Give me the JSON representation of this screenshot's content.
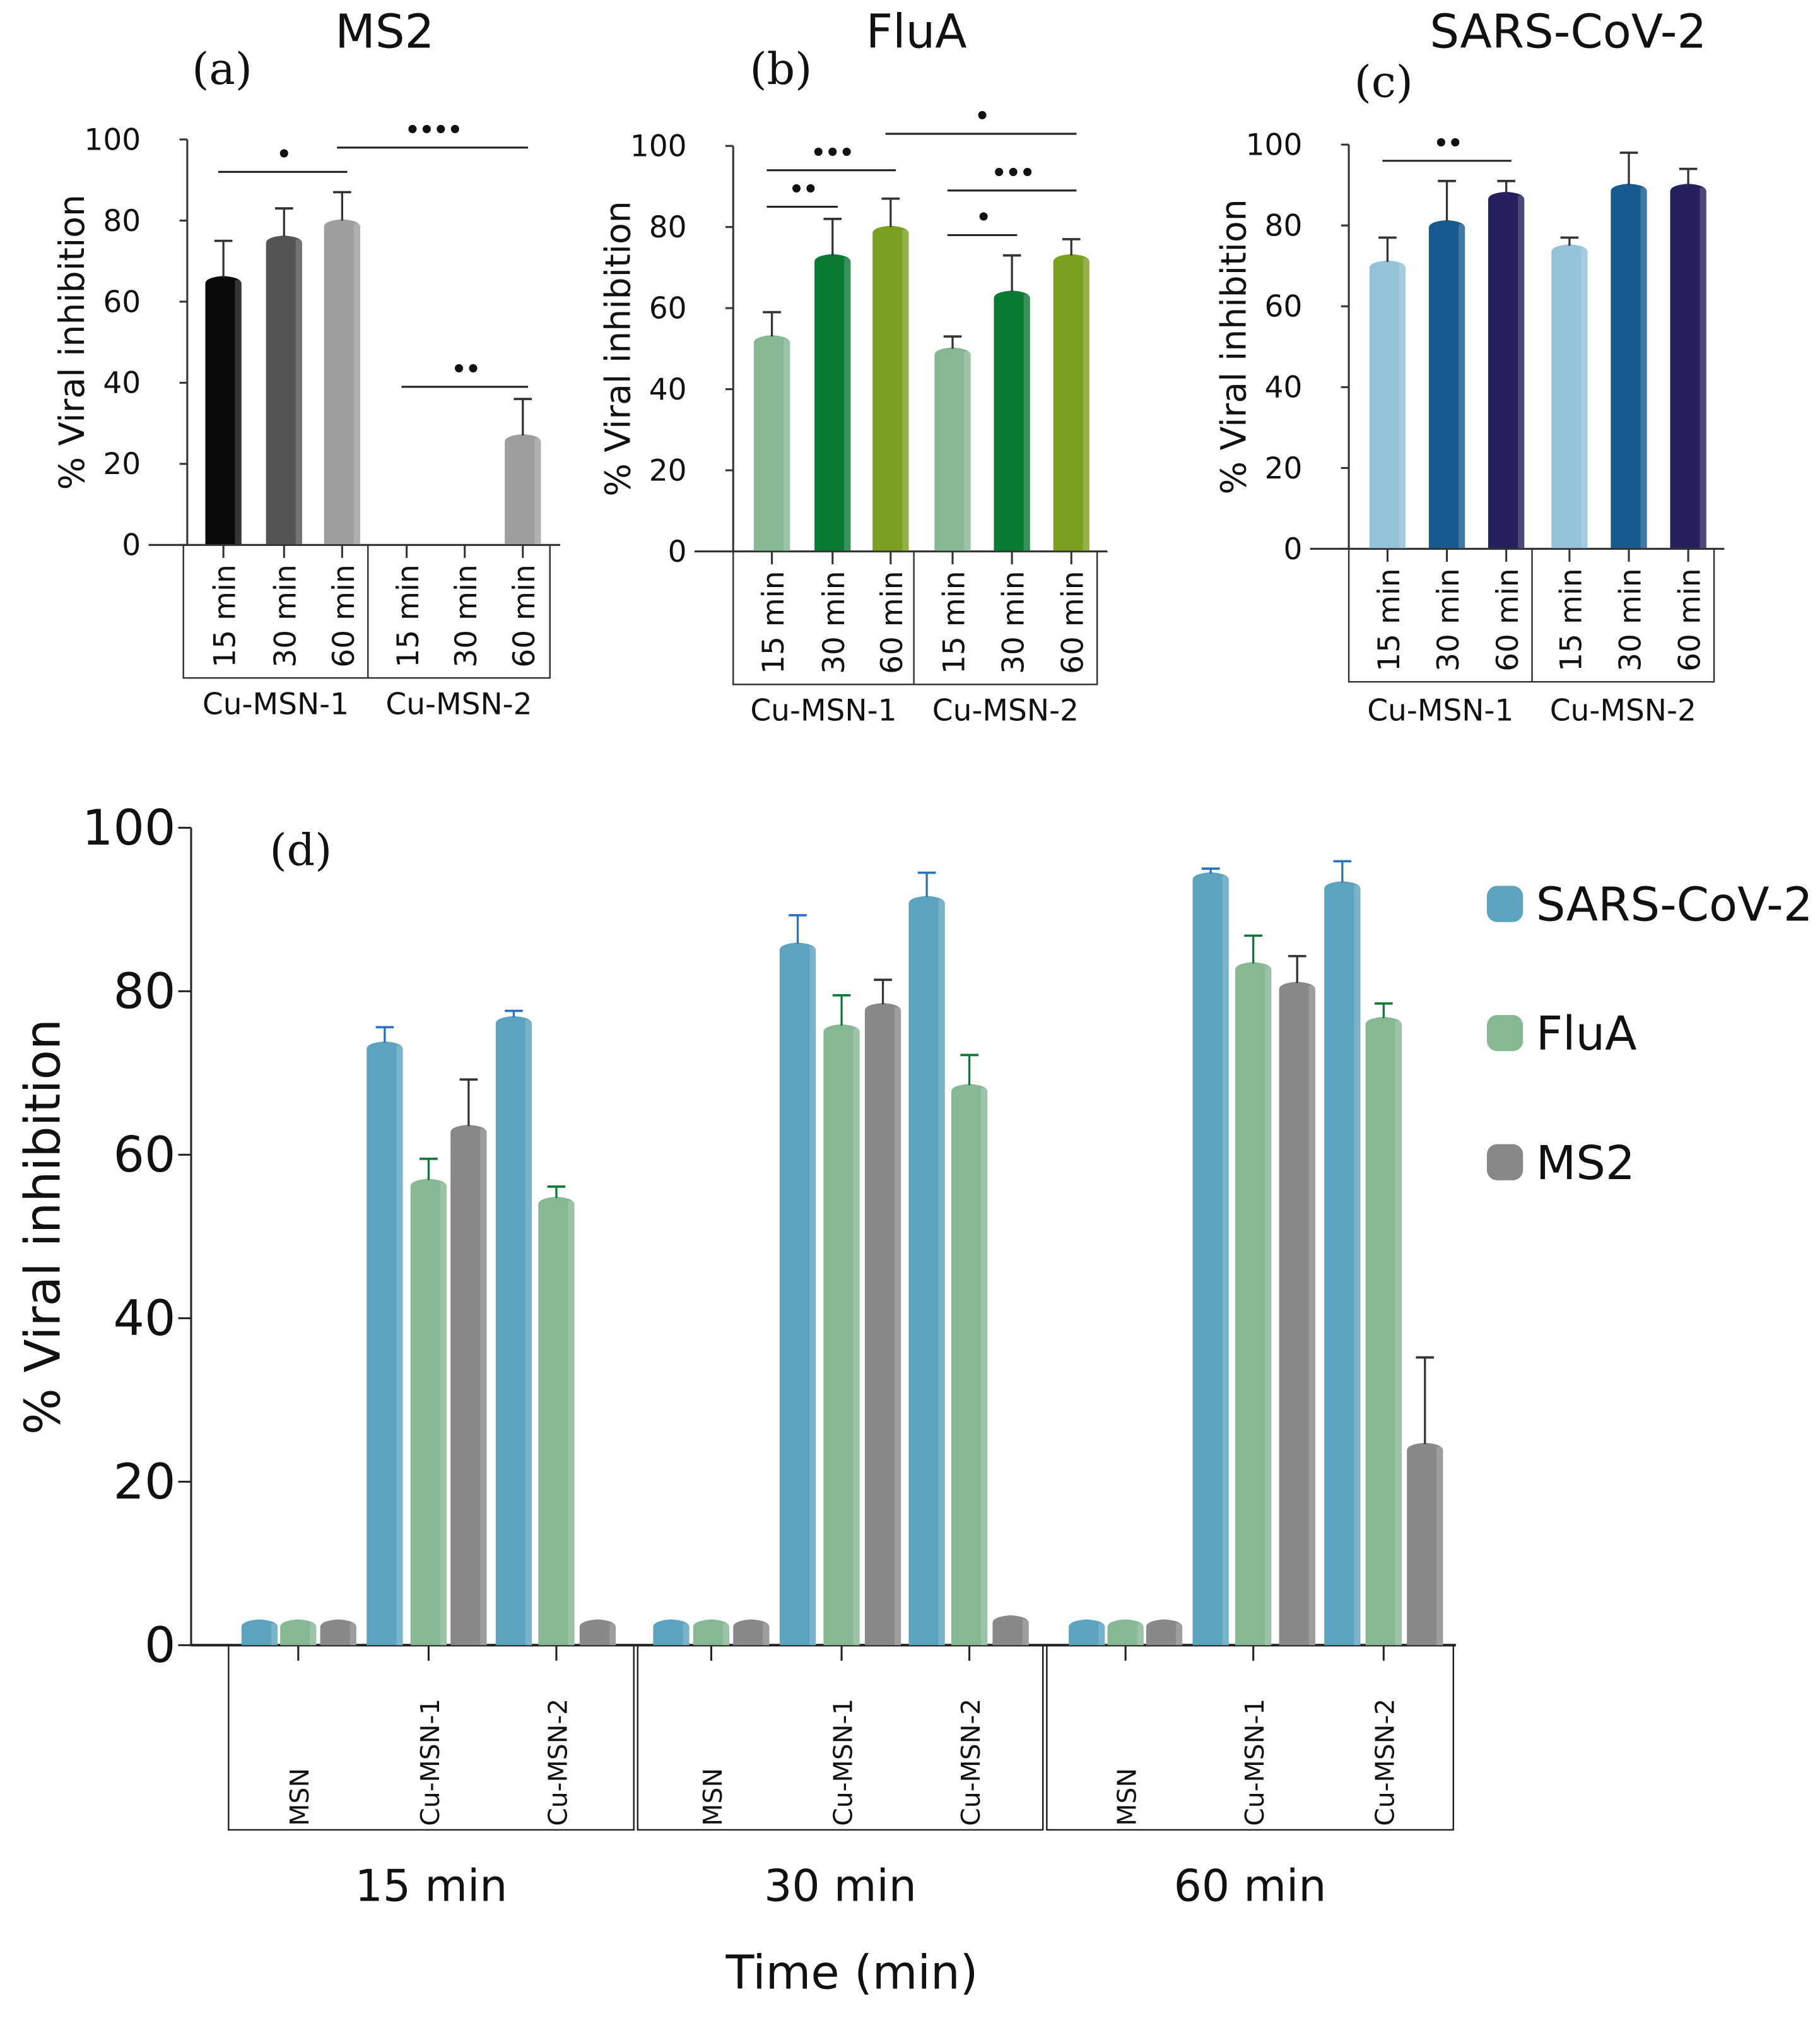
{
  "colors": {
    "sars": "#5ba3be",
    "flua": "#86b894",
    "ms2": "#888888",
    "sars_err": "#2a72c0",
    "flua_err": "#0b7a35",
    "ms2_err": "#333333"
  },
  "chart_data": [
    {
      "panel": "(a)",
      "title": "MS2",
      "type": "bar",
      "ylabel": "% Viral inhibition",
      "ylim": [
        0,
        100
      ],
      "yticks": [
        "0",
        "20",
        "40",
        "60",
        "80",
        "100"
      ],
      "groups": [
        "Cu-MSN-1",
        "Cu-MSN-2"
      ],
      "categories": [
        "15 min",
        "30 min",
        "60 min",
        "15 min",
        "30 min",
        "60 min"
      ],
      "values": [
        66,
        76,
        80,
        0,
        0,
        27
      ],
      "errors_upper": [
        75,
        83,
        87,
        0,
        0,
        36
      ],
      "bar_colors": [
        "#0a0a0a",
        "#555555",
        "#9e9e9e",
        "#9e9e9e",
        "#9e9e9e",
        "#9e9e9e"
      ],
      "significance": [
        {
          "from": 0,
          "to": 2,
          "label": "•",
          "level": 92
        },
        {
          "from": 2,
          "to": 5,
          "label": "••••",
          "level": 98
        },
        {
          "from": 3,
          "to": 5,
          "label": "••",
          "level": 39
        }
      ]
    },
    {
      "panel": "(b)",
      "title": "FluA",
      "type": "bar",
      "ylabel": "% Viral inhibition",
      "ylim": [
        0,
        100
      ],
      "yticks": [
        "0",
        "20",
        "40",
        "60",
        "80",
        "100"
      ],
      "groups": [
        "Cu-MSN-1",
        "Cu-MSN-2"
      ],
      "categories": [
        "15 min",
        "30 min",
        "60 min",
        "15 min",
        "30 min",
        "60 min"
      ],
      "values": [
        53,
        73,
        80,
        50,
        64,
        73
      ],
      "errors_upper": [
        59,
        82,
        87,
        53,
        73,
        77
      ],
      "bar_colors": [
        "#86b894",
        "#0b7a35",
        "#7aa020",
        "#86b894",
        "#0b7a35",
        "#7aa020"
      ],
      "significance": [
        {
          "from": 0,
          "to": 1,
          "label": "••",
          "level": 85
        },
        {
          "from": 0,
          "to": 2,
          "label": "•••",
          "level": 94
        },
        {
          "from": 2,
          "to": 5,
          "label": "•",
          "level": 103
        },
        {
          "from": 3,
          "to": 4,
          "label": "•",
          "level": 78
        },
        {
          "from": 3,
          "to": 5,
          "label": "•••",
          "level": 89
        }
      ]
    },
    {
      "panel": "(c)",
      "title": "SARS-CoV-2",
      "type": "bar",
      "ylabel": "% Viral inhibition",
      "ylim": [
        0,
        100
      ],
      "yticks": [
        "0",
        "20",
        "40",
        "60",
        "80",
        "100"
      ],
      "groups": [
        "Cu-MSN-1",
        "Cu-MSN-2"
      ],
      "categories": [
        "15 min",
        "30 min",
        "60 min",
        "15 min",
        "30 min",
        "60 min"
      ],
      "values": [
        71,
        81,
        88,
        75,
        90,
        90
      ],
      "errors_upper": [
        77,
        91,
        91,
        77,
        98,
        94
      ],
      "bar_colors": [
        "#93c3d8",
        "#175a8f",
        "#25205e",
        "#93c3d8",
        "#175a8f",
        "#25205e"
      ],
      "significance": [
        {
          "from": 0,
          "to": 2,
          "label": "••",
          "level": 96
        }
      ]
    },
    {
      "panel": "(d)",
      "type": "bar",
      "ylabel": "% Viral inhibition",
      "xlabel": "Time (min)",
      "ylim": [
        0,
        100
      ],
      "yticks": [
        "0",
        "20",
        "40",
        "60",
        "80",
        "100"
      ],
      "groups": [
        "15 min",
        "30 min",
        "60 min"
      ],
      "categories": [
        "MSN",
        "Cu-MSN-1",
        "Cu-MSN-2"
      ],
      "legend_position": "right",
      "series": [
        {
          "name": "SARS-CoV-2",
          "values": [
            [
              3,
              73.7,
              76.8
            ],
            [
              3,
              85.8,
              91.5
            ],
            [
              3,
              94.4,
              93.3
            ]
          ],
          "errors_upper": [
            [
              null,
              75.6,
              77.6
            ],
            [
              null,
              89.3,
              94.5
            ],
            [
              null,
              95.0,
              95.9
            ]
          ]
        },
        {
          "name": "FluA",
          "values": [
            [
              3,
              56.9,
              54.7
            ],
            [
              3,
              75.8,
              68.5
            ],
            [
              3,
              83.4,
              76.7
            ]
          ],
          "errors_upper": [
            [
              null,
              59.5,
              56.1
            ],
            [
              null,
              79.5,
              72.2
            ],
            [
              null,
              86.8,
              78.5
            ]
          ]
        },
        {
          "name": "MS2",
          "values": [
            [
              3,
              63.5,
              3
            ],
            [
              3,
              78.4,
              3.5
            ],
            [
              3,
              81.0,
              24.6
            ]
          ],
          "errors_upper": [
            [
              null,
              69.2,
              null
            ],
            [
              null,
              81.4,
              null
            ],
            [
              null,
              84.3,
              35.2
            ]
          ]
        }
      ]
    }
  ]
}
